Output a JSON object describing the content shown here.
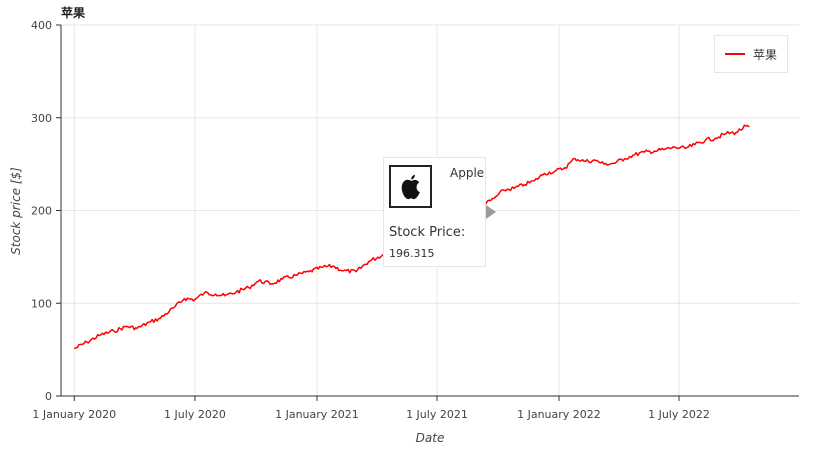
{
  "chart_data": {
    "type": "line",
    "title": "苹果",
    "xlabel": "Date",
    "ylabel": "Stock price [$]",
    "x_range": [
      "2019-12-12",
      "2022-12-29"
    ],
    "ylim": [
      0,
      400
    ],
    "y_ticks": [
      0,
      100,
      200,
      300,
      400
    ],
    "x_ticks": [
      {
        "date": "2020-01-01",
        "label": "1 January 2020"
      },
      {
        "date": "2020-07-01",
        "label": "1 July 2020"
      },
      {
        "date": "2021-01-01",
        "label": "1 January 2021"
      },
      {
        "date": "2021-07-01",
        "label": "1 July 2021"
      },
      {
        "date": "2022-01-01",
        "label": "1 January 2022"
      },
      {
        "date": "2022-07-01",
        "label": "1 July 2022"
      }
    ],
    "grid": true,
    "legend_position": "top-right",
    "series": [
      {
        "name": "苹果",
        "color": "#ff0000",
        "points": [
          [
            "2020-01-01",
            51
          ],
          [
            "2020-01-20",
            58
          ],
          [
            "2020-02-10",
            66
          ],
          [
            "2020-03-01",
            70
          ],
          [
            "2020-03-20",
            75
          ],
          [
            "2020-04-05",
            73
          ],
          [
            "2020-04-25",
            80
          ],
          [
            "2020-05-10",
            84
          ],
          [
            "2020-05-30",
            95
          ],
          [
            "2020-06-15",
            105
          ],
          [
            "2020-07-01",
            104
          ],
          [
            "2020-07-15",
            111
          ],
          [
            "2020-08-01",
            110
          ],
          [
            "2020-08-15",
            108
          ],
          [
            "2020-09-01",
            112
          ],
          [
            "2020-09-20",
            117
          ],
          [
            "2020-10-05",
            124
          ],
          [
            "2020-10-25",
            121
          ],
          [
            "2020-11-10",
            126
          ],
          [
            "2020-11-30",
            130
          ],
          [
            "2020-12-20",
            134
          ],
          [
            "2021-01-10",
            139
          ],
          [
            "2021-01-25",
            140
          ],
          [
            "2021-02-10",
            135
          ],
          [
            "2021-03-01",
            134
          ],
          [
            "2021-03-20",
            145
          ],
          [
            "2021-04-10",
            152
          ],
          [
            "2021-04-25",
            160
          ],
          [
            "2021-05-10",
            165
          ],
          [
            "2021-05-25",
            178
          ],
          [
            "2021-06-10",
            185
          ],
          [
            "2021-06-25",
            195
          ],
          [
            "2021-07-10",
            198
          ],
          [
            "2021-07-25",
            200
          ],
          [
            "2021-08-10",
            196
          ],
          [
            "2021-08-25",
            197
          ],
          [
            "2021-09-10",
            206
          ],
          [
            "2021-09-25",
            213
          ],
          [
            "2021-10-10",
            222
          ],
          [
            "2021-10-25",
            224
          ],
          [
            "2021-11-10",
            228
          ],
          [
            "2021-11-25",
            232
          ],
          [
            "2021-12-10",
            240
          ],
          [
            "2021-12-25",
            242
          ],
          [
            "2022-01-10",
            246
          ],
          [
            "2022-01-25",
            256
          ],
          [
            "2022-02-10",
            253
          ],
          [
            "2022-02-25",
            254
          ],
          [
            "2022-03-10",
            250
          ],
          [
            "2022-03-25",
            251
          ],
          [
            "2022-04-10",
            256
          ],
          [
            "2022-04-25",
            260
          ],
          [
            "2022-05-10",
            263
          ],
          [
            "2022-05-25",
            264
          ],
          [
            "2022-06-10",
            266
          ],
          [
            "2022-06-25",
            268
          ],
          [
            "2022-07-10",
            267
          ],
          [
            "2022-07-25",
            271
          ],
          [
            "2022-08-10",
            276
          ],
          [
            "2022-08-25",
            278
          ],
          [
            "2022-09-10",
            283
          ],
          [
            "2022-09-25",
            284
          ],
          [
            "2022-10-10",
            291
          ],
          [
            "2022-10-15",
            290
          ]
        ]
      }
    ],
    "tooltip": {
      "company": "Apple",
      "field": "Stock Price:",
      "value": "196.315",
      "logo_icon": "apple-logo-icon"
    }
  }
}
